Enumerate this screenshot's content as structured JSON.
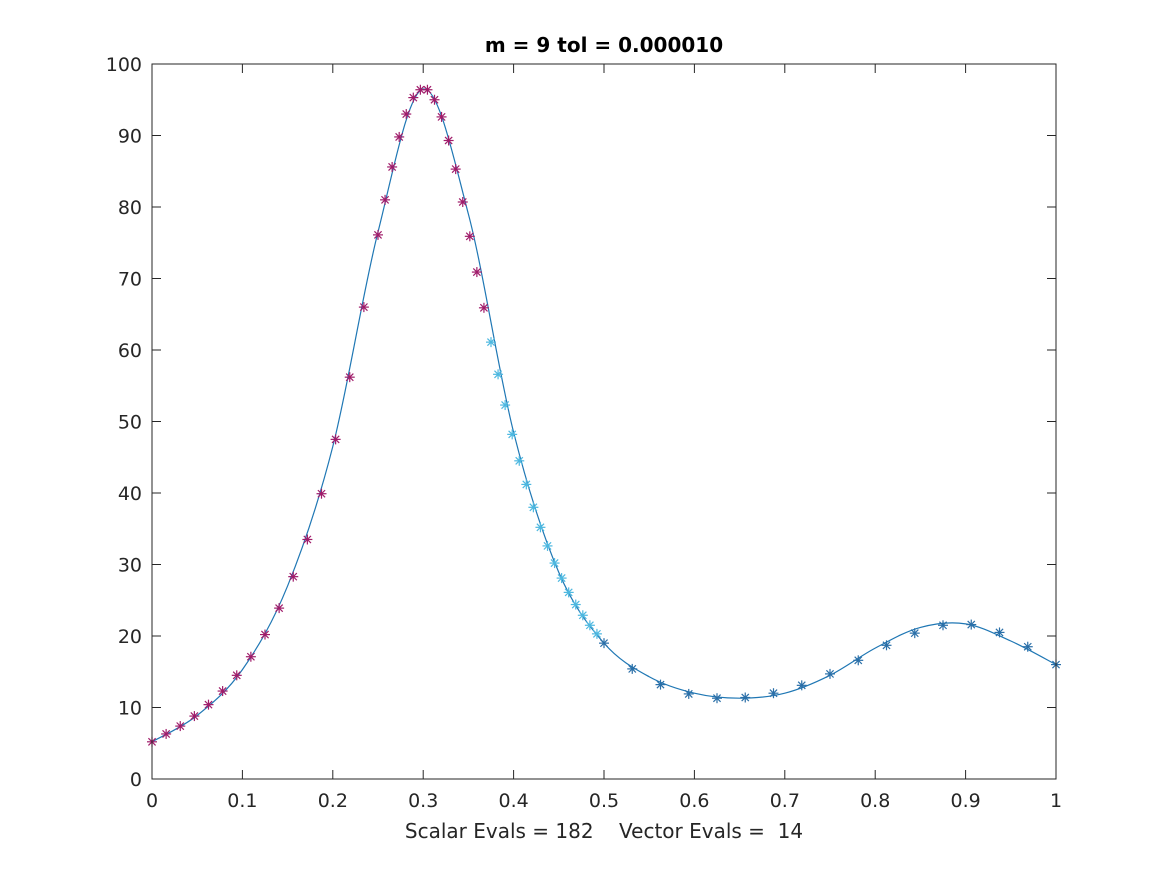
{
  "chart_data": {
    "type": "line",
    "title": "m =  9   tol =   0.000010",
    "xlabel": "Scalar Evals = 182    Vector Evals =  14",
    "ylabel": "",
    "xlim": [
      0,
      1
    ],
    "ylim": [
      0,
      100
    ],
    "grid": false,
    "legend": "none",
    "xticks": [
      "0",
      "0.1",
      "0.2",
      "0.3",
      "0.4",
      "0.5",
      "0.6",
      "0.7",
      "0.8",
      "0.9",
      "1"
    ],
    "yticks": [
      "0",
      "10",
      "20",
      "30",
      "40",
      "50",
      "60",
      "70",
      "80",
      "90",
      "100"
    ],
    "series": [
      {
        "kind": "curve",
        "color": "#1f77b4",
        "x": [
          0,
          0.05,
          0.1,
          0.15,
          0.2,
          0.25,
          0.3,
          0.35,
          0.4,
          0.45,
          0.5,
          0.55,
          0.6,
          0.65,
          0.7,
          0.75,
          0.8,
          0.85,
          0.9,
          0.95,
          1.0
        ],
        "y": [
          5.2,
          8.9,
          15.3,
          27.0,
          46.5,
          76.5,
          96.5,
          79.0,
          48.5,
          28.9,
          19.0,
          14.3,
          12.0,
          11.3,
          12.0,
          14.5,
          18.3,
          21.2,
          21.7,
          19.3,
          16.0
        ]
      },
      {
        "kind": "markers",
        "marker": "*",
        "color": "#a01c6a",
        "x": [
          0,
          0.015625,
          0.03125,
          0.046875,
          0.0625,
          0.078125,
          0.09375,
          0.109375,
          0.125,
          0.140625,
          0.15625,
          0.171875,
          0.1875,
          0.203125,
          0.21875,
          0.234375,
          0.25,
          0.2578125,
          0.265625,
          0.2734375,
          0.28125,
          0.2890625,
          0.296875,
          0.3046875,
          0.3125,
          0.3203125,
          0.328125,
          0.3359375,
          0.34375,
          0.3515625,
          0.359375,
          0.3671875
        ],
        "y": [
          5.2,
          6.3,
          7.4,
          8.8,
          10.4,
          12.3,
          14.5,
          17.1,
          20.2,
          23.9,
          28.3,
          33.5,
          39.9,
          47.5,
          56.2,
          66.0,
          76.1,
          81.0,
          85.6,
          89.8,
          93.0,
          95.3,
          96.4,
          96.4,
          95.0,
          92.6,
          89.3,
          85.3,
          80.7,
          75.9,
          70.9,
          65.9
        ]
      },
      {
        "kind": "markers",
        "marker": "*",
        "color": "#4db8e0",
        "x": [
          0.375,
          0.3828125,
          0.390625,
          0.3984375,
          0.40625,
          0.4140625,
          0.421875,
          0.4296875,
          0.4375,
          0.4453125,
          0.453125,
          0.4609375,
          0.46875,
          0.4765625,
          0.484375,
          0.4921875
        ],
        "y": [
          61.1,
          56.6,
          52.3,
          48.2,
          44.5,
          41.2,
          38.0,
          35.2,
          32.6,
          30.2,
          28.1,
          26.1,
          24.4,
          22.9,
          21.5,
          20.3
        ]
      },
      {
        "kind": "markers",
        "marker": "*",
        "color": "#2a6fa8",
        "x": [
          0.5,
          0.53125,
          0.5625,
          0.59375,
          0.625,
          0.65625,
          0.6875,
          0.71875,
          0.75,
          0.78125,
          0.8125,
          0.84375,
          0.875,
          0.90625,
          0.9375,
          0.96875,
          1.0
        ],
        "y": [
          19.0,
          15.4,
          13.2,
          11.9,
          11.3,
          11.4,
          12.0,
          13.1,
          14.7,
          16.6,
          18.7,
          20.4,
          21.5,
          21.6,
          20.5,
          18.5,
          16.0
        ]
      }
    ]
  }
}
